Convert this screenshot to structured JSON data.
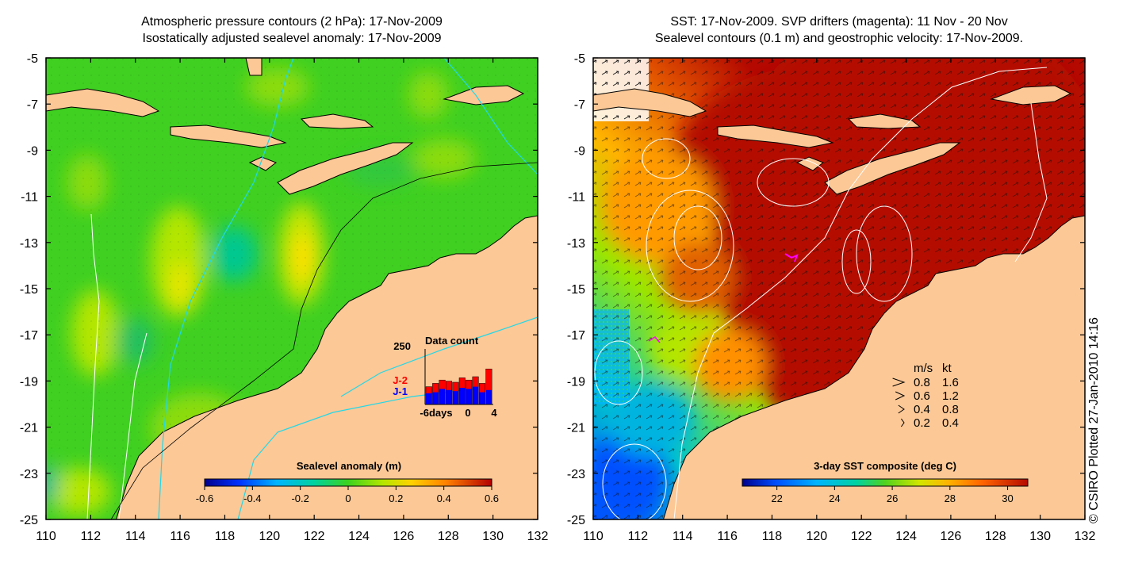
{
  "left_panel": {
    "title_line1": "Atmospheric pressure contours (2 hPa): 17-Nov-2009",
    "title_line2": "Isostatically adjusted sealevel anomaly: 17-Nov-2009",
    "colorbar": {
      "title": "Sealevel anomaly (m)",
      "ticks": [
        "-0.6",
        "-0.4",
        "-0.2",
        "0",
        "0.2",
        "0.4",
        "0.6"
      ],
      "range": [
        -0.6,
        0.6
      ]
    },
    "data_count": {
      "title": "Data count",
      "ymax_label": "250",
      "series": [
        {
          "name": "J-2",
          "color": "#ff0000",
          "values": [
            80,
            95,
            110,
            105,
            100,
            120,
            110,
            125,
            95,
            160
          ]
        },
        {
          "name": "J-1",
          "color": "#0000ff",
          "values": [
            50,
            55,
            70,
            65,
            60,
            75,
            70,
            80,
            55,
            65
          ]
        }
      ],
      "ylim": [
        0,
        250
      ],
      "x_tick_labels": [
        "-6days",
        "0",
        "4"
      ]
    }
  },
  "right_panel": {
    "title_line1": "SST: 17-Nov-2009. SVP drifters (magenta): 11 Nov - 20 Nov",
    "title_line2": "Sealevel contours (0.1 m) and geostrophic velocity: 17-Nov-2009.",
    "colorbar": {
      "title": "3-day SST composite (deg C)",
      "ticks": [
        "22",
        "24",
        "26",
        "28",
        "30"
      ],
      "range": [
        20.8,
        30.7
      ]
    },
    "velocity_legend": {
      "header_ms": "m/s",
      "header_kt": "kt",
      "rows": [
        {
          "ms": "0.8",
          "kt": "1.6"
        },
        {
          "ms": "0.6",
          "kt": "1.2"
        },
        {
          "ms": "0.4",
          "kt": "0.8"
        },
        {
          "ms": "0.2",
          "kt": "0.4"
        }
      ]
    }
  },
  "axes": {
    "x_ticks": [
      "110",
      "112",
      "114",
      "116",
      "118",
      "120",
      "122",
      "124",
      "126",
      "128",
      "130",
      "132"
    ],
    "y_ticks": [
      "-5",
      "-7",
      "-9",
      "-11",
      "-13",
      "-15",
      "-17",
      "-19",
      "-21",
      "-23",
      "-25"
    ]
  },
  "credit": "© CSIRO Plotted 27-Jan-2010 14:16",
  "colors": {
    "land": "#fcc896",
    "ocean_green": "#3fd021",
    "sst_warm": "#b40a00",
    "contour_cyan": "#22d8e8"
  }
}
